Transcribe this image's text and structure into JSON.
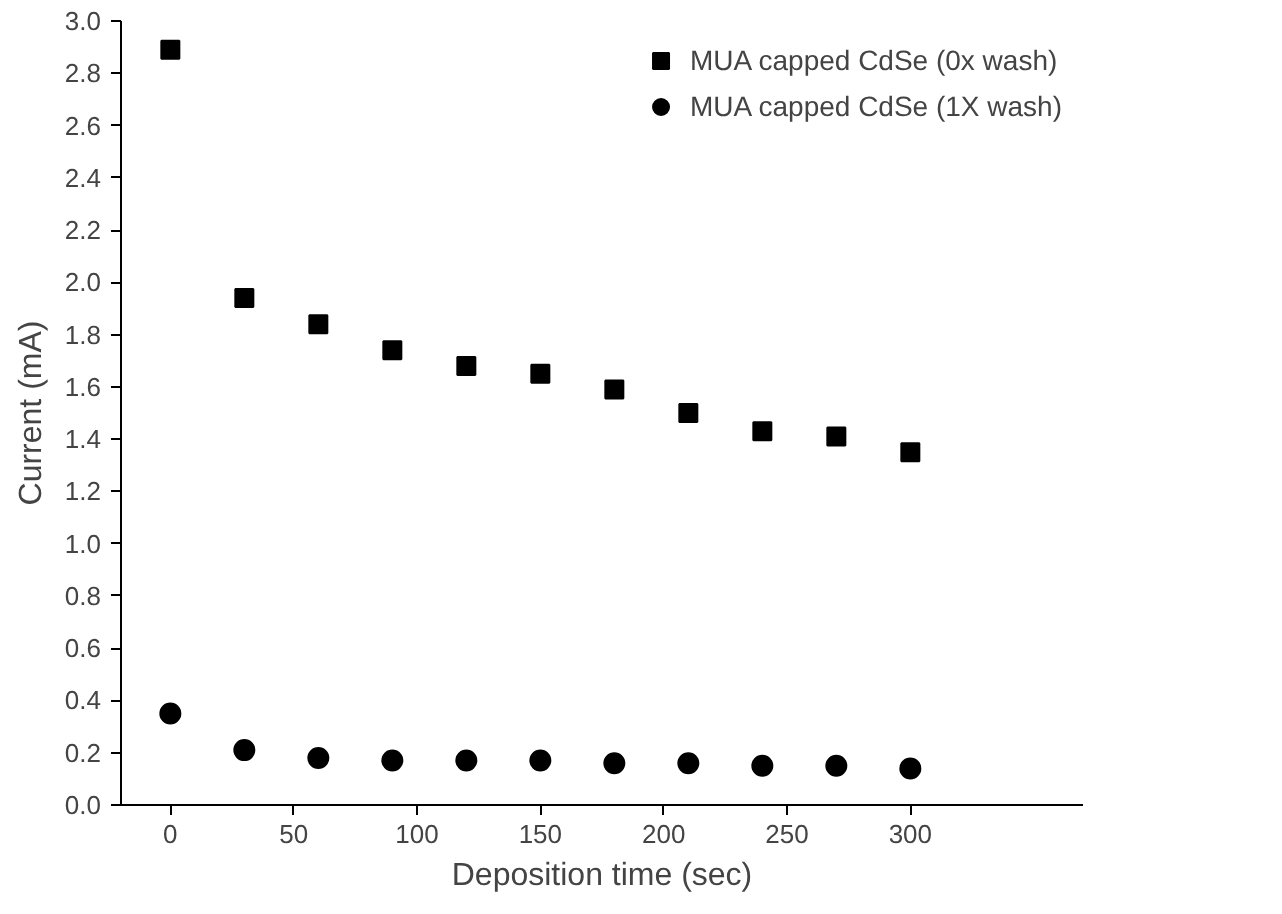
{
  "chart_data": {
    "type": "scatter",
    "xlabel": "Deposition time (sec)",
    "ylabel": "Current (mA)",
    "x": [
      0,
      30,
      60,
      90,
      120,
      150,
      180,
      210,
      240,
      270,
      300
    ],
    "series": [
      {
        "name": "MUA capped CdSe (0x wash)",
        "color": "#000000",
        "marker": "square",
        "values": [
          2.89,
          1.94,
          1.84,
          1.74,
          1.68,
          1.65,
          1.59,
          1.5,
          1.43,
          1.41,
          1.35
        ]
      },
      {
        "name": "MUA capped CdSe (1X wash)",
        "color": "#000000",
        "marker": "circle",
        "values": [
          0.35,
          0.21,
          0.18,
          0.17,
          0.17,
          0.17,
          0.16,
          0.16,
          0.15,
          0.15,
          0.14
        ]
      }
    ],
    "xlim": [
      -20,
      370
    ],
    "xticks": [
      0,
      50,
      100,
      150,
      200,
      250,
      300
    ],
    "ylim": [
      0,
      3.0
    ],
    "yticks": [
      {
        "value": 0,
        "label": "0.0"
      },
      {
        "value": 0.2,
        "label": "0.2"
      },
      {
        "value": 0.4,
        "label": "0.4"
      },
      {
        "value": 0.6,
        "label": "0.6"
      },
      {
        "value": 0.8,
        "label": "0.8"
      },
      {
        "value": 1.0,
        "label": "1.0"
      },
      {
        "value": 1.2,
        "label": "1.2"
      },
      {
        "value": 1.4,
        "label": "1.4"
      },
      {
        "value": 1.6,
        "label": "1.6"
      },
      {
        "value": 1.8,
        "label": "1.8"
      },
      {
        "value": 2.0,
        "label": "2.0"
      },
      {
        "value": 2.2,
        "label": "2.2"
      },
      {
        "value": 2.4,
        "label": "2.4"
      },
      {
        "value": 2.6,
        "label": "2.6"
      },
      {
        "value": 2.8,
        "label": "2.8"
      },
      {
        "value": 3.0,
        "label": "3.0"
      }
    ],
    "grid": false,
    "legend": "top right"
  }
}
